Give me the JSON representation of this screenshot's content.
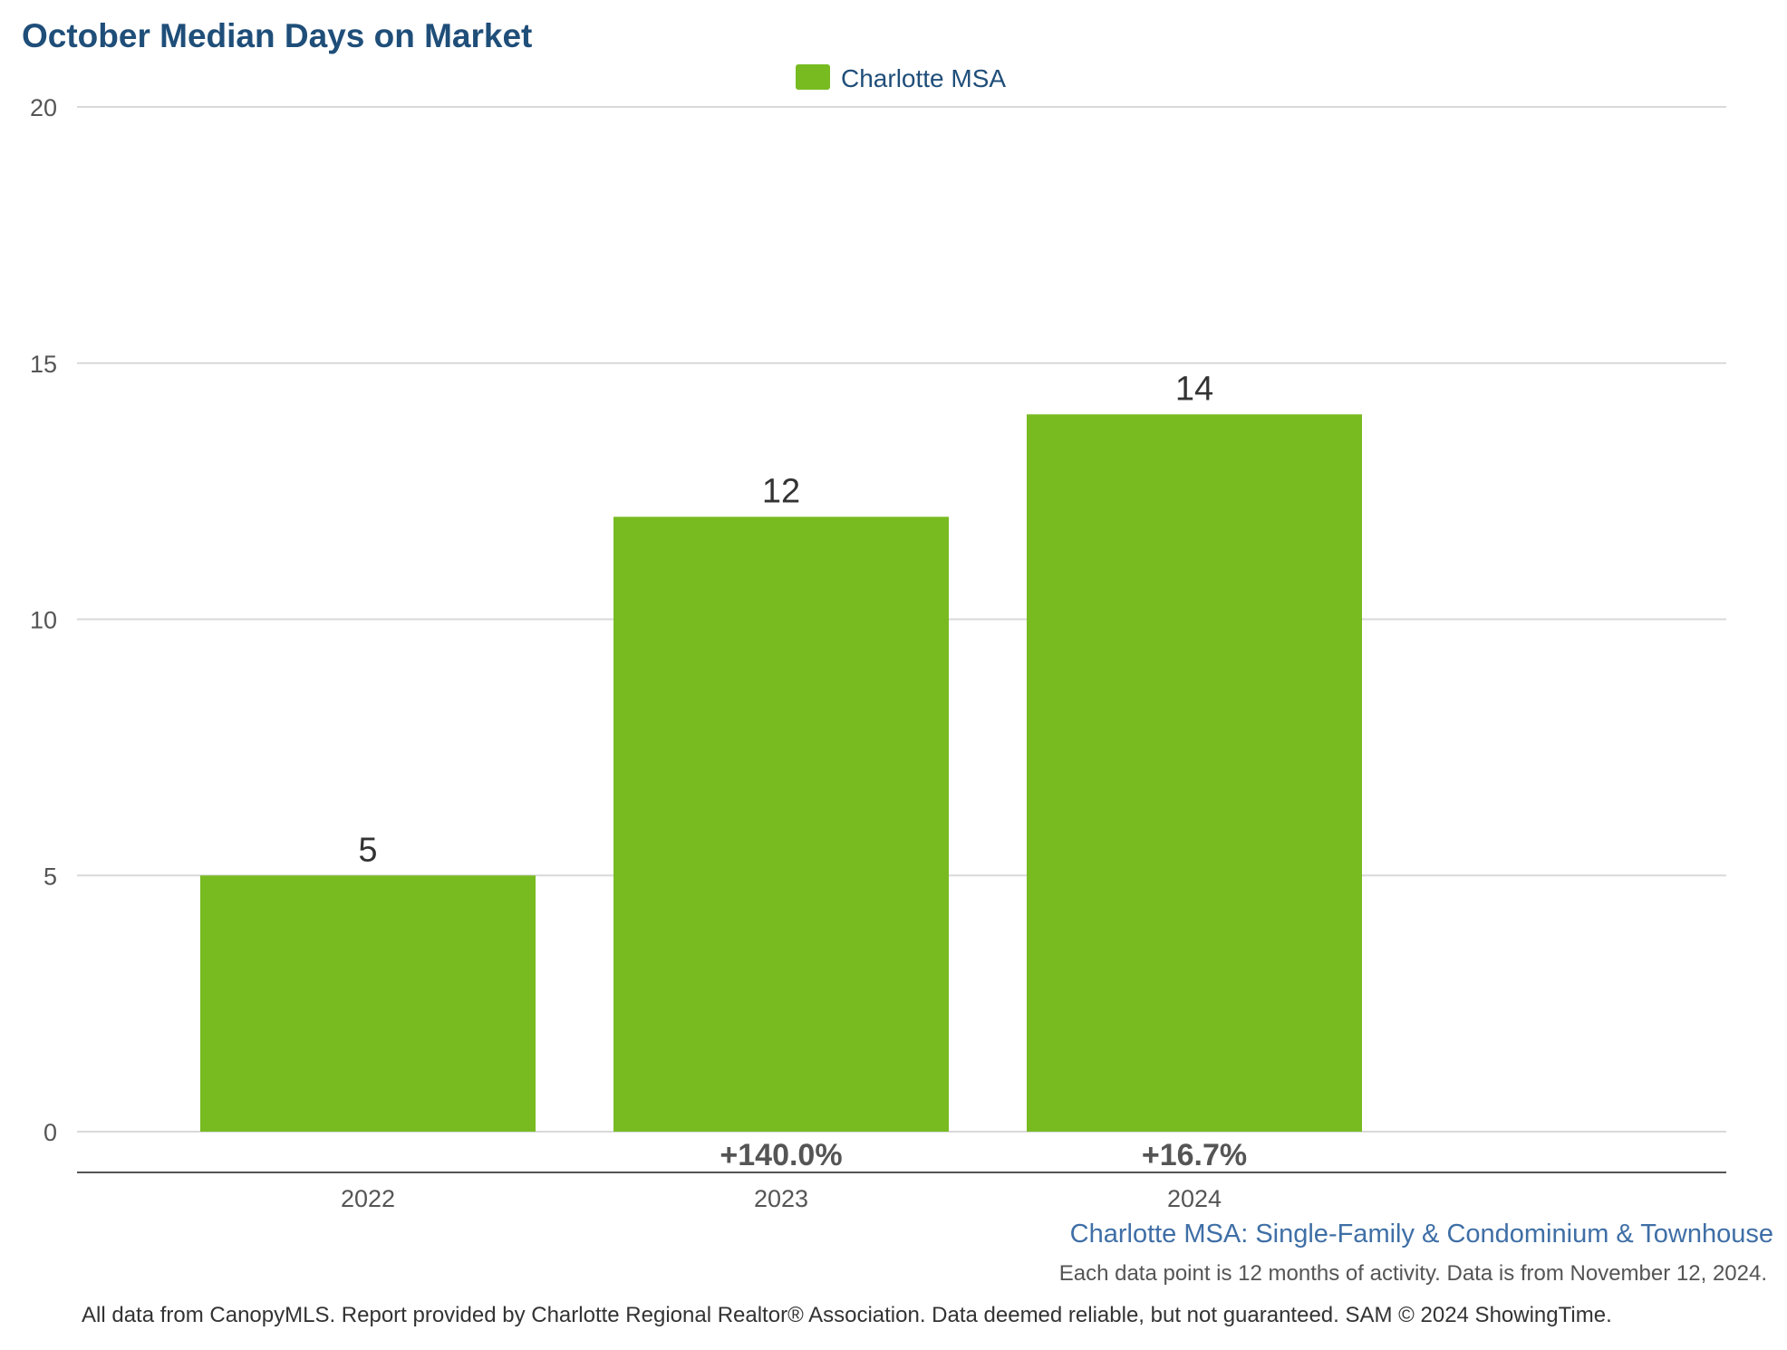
{
  "chart_data": {
    "type": "bar",
    "title": "October Median Days on Market",
    "categories": [
      "2022",
      "2023",
      "2024"
    ],
    "series": [
      {
        "name": "Charlotte MSA",
        "values": [
          5,
          12,
          14
        ]
      }
    ],
    "value_labels": [
      "5",
      "12",
      "14"
    ],
    "change_labels": [
      "",
      "+140.0%",
      "+16.7%"
    ],
    "yticks": [
      "0",
      "5",
      "10",
      "15",
      "20"
    ],
    "ylim": [
      0,
      20
    ],
    "xlabel": "",
    "ylabel": "",
    "grid": true,
    "legend_position": "top-center",
    "subtitle": "Charlotte MSA: Single-Family & Condominium & Townhouse",
    "note": "Each data point is 12 months of activity. Data is from November 12, 2024.",
    "footer": "All data from CanopyMLS. Report provided by Charlotte Regional Realtor® Association. Data deemed reliable, but not guaranteed. SAM © 2024 ShowingTime."
  },
  "colors": {
    "bar": "#77bb21",
    "title": "#1f4e79",
    "legend_text": "#1f4e79",
    "subtitle": "#3f6fa6",
    "grid": "#d9d9d9",
    "axis": "#555555"
  }
}
